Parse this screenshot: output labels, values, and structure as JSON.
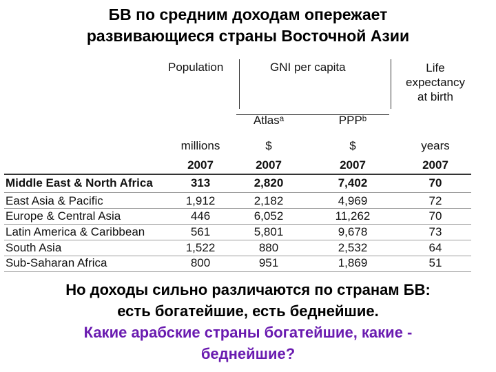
{
  "title": {
    "line1": "БВ по средним  доходам опережает",
    "line2": "развивающиеся страны Восточной Азии"
  },
  "table": {
    "headers": {
      "population": "Population",
      "gni": "GNI per capita",
      "life_line1": "Life",
      "life_line2": "expectancy",
      "life_line3": "at birth",
      "atlas": "Atlasᵃ",
      "ppp": "PPPᵇ"
    },
    "units": {
      "population": "millions",
      "atlas": "$",
      "ppp": "$",
      "life": "years"
    },
    "years": {
      "population": "2007",
      "atlas": "2007",
      "ppp": "2007",
      "life": "2007"
    },
    "rows": [
      {
        "region": "Middle East & North Africa",
        "population": "313",
        "atlas": "2,820",
        "ppp": "7,402",
        "life": "70"
      },
      {
        "region": "East Asia & Pacific",
        "population": "1,912",
        "atlas": "2,182",
        "ppp": "4,969",
        "life": "72"
      },
      {
        "region": "Europe & Central Asia",
        "population": "446",
        "atlas": "6,052",
        "ppp": "11,262",
        "life": "70"
      },
      {
        "region": "Latin America & Caribbean",
        "population": "561",
        "atlas": "5,801",
        "ppp": "9,678",
        "life": "73"
      },
      {
        "region": "South Asia",
        "population": "1,522",
        "atlas": "880",
        "ppp": "2,532",
        "life": "64"
      },
      {
        "region": "Sub-Saharan Africa",
        "population": "800",
        "atlas": "951",
        "ppp": "1,869",
        "life": "51"
      }
    ]
  },
  "bottom": {
    "line1": "Но доходы сильно различаются по странам БВ:",
    "line2": "есть богатейшие, есть беднейшие.",
    "question_line1": "Какие арабские страны богатейшие, какие -",
    "question_line2": "беднейшие?"
  },
  "colors": {
    "question_text": "#6a1bb0"
  }
}
